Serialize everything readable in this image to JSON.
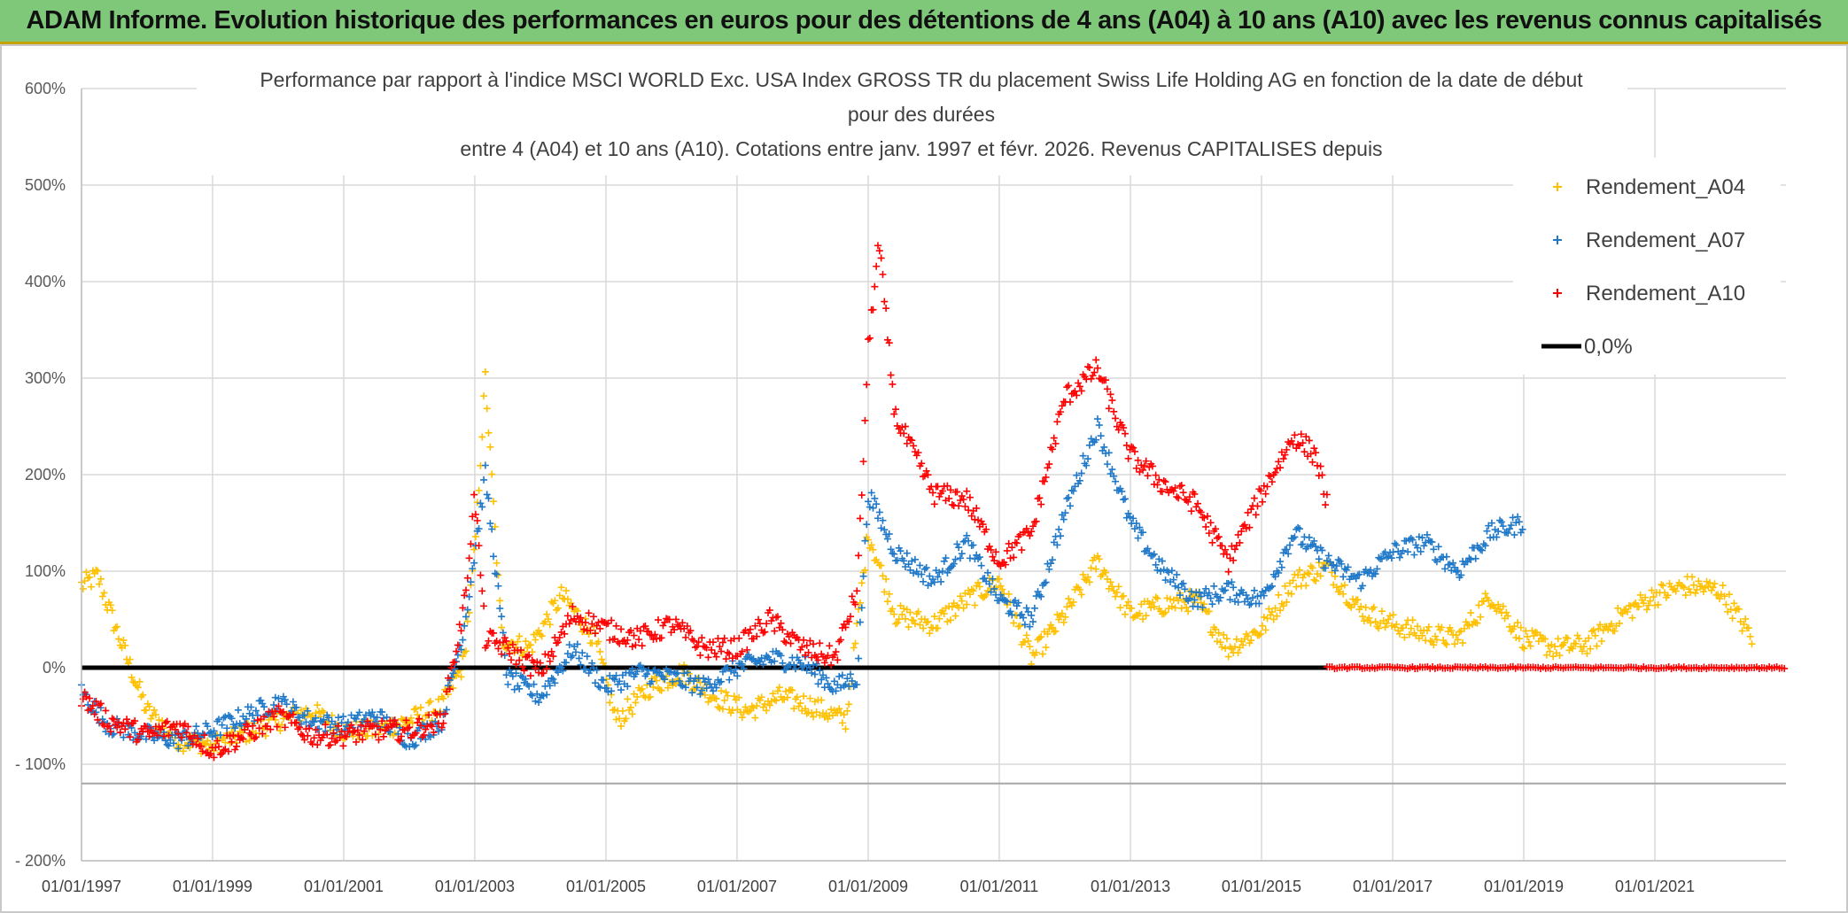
{
  "banner": {
    "title": "ADAM Informe. Evolution historique des performances en euros pour des détentions de 4 ans (A04) à 10 ans (A10) avec les revenus connus capitalisés"
  },
  "colors": {
    "A04": "#ffc000",
    "A07": "#1f78c8",
    "A10": "#ff0000",
    "zero": "#000000",
    "banner": "#7fc87a"
  },
  "chart_data": {
    "type": "scatter",
    "title_lines": [
      "Performance par rapport à l'indice MSCI WORLD Exc. USA Index GROSS TR  du placement Swiss Life Holding AG en fonction de la date de début",
      "pour des durées",
      "entre 4 (A04) et 10 ans (A10). Cotations entre janv. 1997 et févr. 2026. Revenus CAPITALISES depuis"
    ],
    "xlabel": "",
    "ylabel": "",
    "x_range": [
      "1997-01-01",
      "2023-01-01"
    ],
    "ylim": [
      -200,
      600
    ],
    "grid": true,
    "legend_position": "top-right",
    "x_ticks": [
      "01/01/1997",
      "01/01/1999",
      "01/01/2001",
      "01/01/2003",
      "01/01/2005",
      "01/01/2007",
      "01/01/2009",
      "01/01/2011",
      "01/01/2013",
      "01/01/2015",
      "01/01/2017",
      "01/01/2019",
      "01/01/2021"
    ],
    "y_ticks": [
      "600%",
      "500%",
      "400%",
      "300%",
      "200%",
      "100%",
      "0%",
      "- 100%",
      "- 200%"
    ],
    "series": [
      {
        "name": "Rendement_A04",
        "marker": "+",
        "x": [
          "1997-01-01",
          "1997-04-01",
          "1997-08-01",
          "1998-01-01",
          "1998-07-01",
          "1999-01-01",
          "1999-06-01",
          "2000-01-01",
          "2000-07-01",
          "2001-01-01",
          "2001-07-01",
          "2002-01-01",
          "2002-07-01",
          "2002-11-01",
          "2003-01-01",
          "2003-03-01",
          "2003-06-01",
          "2003-11-01",
          "2004-05-01",
          "2004-11-01",
          "2005-03-01",
          "2005-09-01",
          "2006-03-01",
          "2006-09-01",
          "2007-03-01",
          "2007-09-01",
          "2008-03-01",
          "2008-09-01",
          "2009-01-01",
          "2009-06-01",
          "2010-01-01",
          "2010-07-01",
          "2011-01-01",
          "2011-07-01",
          "2012-01-01",
          "2012-07-01",
          "2013-01-01",
          "2013-07-01",
          "2014-01-01",
          "2014-07-01",
          "2015-01-01",
          "2015-07-01",
          "2016-01-01",
          "2016-07-01",
          "2017-01-01",
          "2017-07-01",
          "2018-01-01",
          "2018-07-01",
          "2019-01-01",
          "2019-07-01",
          "2020-01-01",
          "2020-07-01",
          "2021-01-01",
          "2021-07-01",
          "2022-01-01",
          "2022-07-01"
        ],
        "y": [
          85,
          95,
          30,
          -45,
          -75,
          -80,
          -70,
          -55,
          -45,
          -65,
          -65,
          -55,
          -40,
          5,
          120,
          300,
          30,
          20,
          75,
          30,
          -55,
          -20,
          -5,
          -30,
          -45,
          -30,
          -40,
          -55,
          140,
          55,
          45,
          70,
          90,
          10,
          55,
          110,
          55,
          65,
          70,
          20,
          40,
          90,
          105,
          60,
          45,
          35,
          30,
          75,
          30,
          20,
          25,
          55,
          75,
          85,
          80,
          30
        ]
      },
      {
        "name": "Rendement_A07",
        "marker": "+",
        "x": [
          "1997-01-01",
          "1997-06-01",
          "1998-01-01",
          "1998-07-01",
          "1999-01-01",
          "1999-07-01",
          "2000-01-01",
          "2000-07-01",
          "2001-01-01",
          "2001-07-01",
          "2002-01-01",
          "2002-07-01",
          "2002-11-01",
          "2003-01-01",
          "2003-03-01",
          "2003-07-01",
          "2004-01-01",
          "2004-07-01",
          "2005-01-01",
          "2005-07-01",
          "2006-01-01",
          "2006-07-01",
          "2007-01-01",
          "2007-07-01",
          "2008-01-01",
          "2008-07-01",
          "2008-11-01",
          "2009-01-01",
          "2009-06-01",
          "2010-01-01",
          "2010-07-01",
          "2011-01-01",
          "2011-07-01",
          "2012-01-01",
          "2012-07-01",
          "2013-01-01",
          "2013-07-01",
          "2014-01-01",
          "2014-07-01",
          "2015-01-01",
          "2015-07-01",
          "2016-01-01",
          "2016-07-01",
          "2017-01-01",
          "2017-07-01",
          "2018-01-01",
          "2018-07-01",
          "2019-01-01"
        ],
        "y": [
          -25,
          -60,
          -70,
          -75,
          -65,
          -50,
          -35,
          -55,
          -60,
          -50,
          -75,
          -55,
          40,
          120,
          200,
          -10,
          -30,
          20,
          -20,
          -5,
          -10,
          -20,
          0,
          10,
          5,
          -20,
          -10,
          180,
          120,
          90,
          130,
          70,
          50,
          160,
          250,
          150,
          100,
          70,
          80,
          70,
          140,
          110,
          90,
          120,
          130,
          100,
          140,
          150
        ]
      },
      {
        "name": "Rendement_A10",
        "marker": "+",
        "x": [
          "1997-01-01",
          "1997-06-01",
          "1998-01-01",
          "1998-07-01",
          "1999-01-01",
          "1999-07-01",
          "2000-01-01",
          "2000-07-01",
          "2001-01-01",
          "2001-07-01",
          "2002-01-01",
          "2002-07-01",
          "2002-11-01",
          "2003-01-01",
          "2003-03-01",
          "2003-07-01",
          "2004-01-01",
          "2004-07-01",
          "2005-01-01",
          "2005-07-01",
          "2006-01-01",
          "2006-07-01",
          "2007-01-01",
          "2007-07-01",
          "2008-01-01",
          "2008-07-01",
          "2008-11-01",
          "2009-01-01",
          "2009-03-01",
          "2009-06-01",
          "2010-01-01",
          "2010-07-01",
          "2011-01-01",
          "2011-07-01",
          "2012-01-01",
          "2012-07-01",
          "2013-01-01",
          "2013-07-01",
          "2014-01-01",
          "2014-07-01",
          "2015-01-01",
          "2015-07-01",
          "2015-11-01",
          "2016-01-01"
        ],
        "y": [
          -30,
          -55,
          -70,
          -60,
          -85,
          -70,
          -50,
          -70,
          -70,
          -65,
          -65,
          -55,
          60,
          180,
          30,
          20,
          -5,
          55,
          40,
          30,
          45,
          20,
          20,
          50,
          20,
          10,
          80,
          330,
          440,
          260,
          180,
          175,
          110,
          140,
          280,
          310,
          220,
          190,
          170,
          110,
          180,
          240,
          220,
          170
        ]
      },
      {
        "name": "0,0%",
        "marker": "line",
        "x": [
          "1997-01-01",
          "2016-01-01"
        ],
        "y": [
          0,
          0
        ]
      },
      {
        "name": "",
        "marker": "+",
        "color": "A10",
        "x": [
          "2016-01-01",
          "2023-01-01"
        ],
        "y": [
          0,
          0
        ]
      }
    ]
  }
}
